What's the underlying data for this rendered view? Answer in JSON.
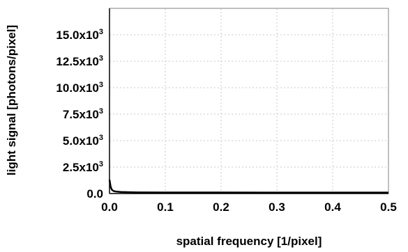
{
  "chart_data": {
    "type": "line",
    "title": "",
    "xlabel": "spatial frequency [1/pixel]",
    "ylabel": "light signal [photons/pixel]",
    "xlim": [
      0,
      0.5
    ],
    "ylim": [
      0,
      17500
    ],
    "grid": true,
    "x_ticks": [
      {
        "value": 0.0,
        "label": "0.0"
      },
      {
        "value": 0.1,
        "label": "0.1"
      },
      {
        "value": 0.2,
        "label": "0.2"
      },
      {
        "value": 0.3,
        "label": "0.3"
      },
      {
        "value": 0.4,
        "label": "0.4"
      },
      {
        "value": 0.5,
        "label": "0.5"
      }
    ],
    "y_ticks": [
      {
        "value": 0,
        "label": "0.0",
        "mantissa": "0.0",
        "exponent": ""
      },
      {
        "value": 2500,
        "label": "2.5x10^3",
        "mantissa": "2.5x10",
        "exponent": "3"
      },
      {
        "value": 5000,
        "label": "5.0x10^3",
        "mantissa": "5.0x10",
        "exponent": "3"
      },
      {
        "value": 7500,
        "label": "7.5x10^3",
        "mantissa": "7.5x10",
        "exponent": "3"
      },
      {
        "value": 10000,
        "label": "10.0x10^3",
        "mantissa": "10.0x10",
        "exponent": "3"
      },
      {
        "value": 12500,
        "label": "12.5x10^3",
        "mantissa": "12.5x10",
        "exponent": "3"
      },
      {
        "value": 15000,
        "label": "15.0x10^3",
        "mantissa": "15.0x10",
        "exponent": "3"
      }
    ],
    "series": [
      {
        "color": "#000000",
        "x": [
          0.0,
          0.002,
          0.004,
          0.006,
          0.008,
          0.01,
          0.015,
          0.02,
          0.03,
          0.05,
          0.1,
          0.2,
          0.3,
          0.4,
          0.5
        ],
        "y": [
          1300,
          650,
          380,
          280,
          230,
          200,
          170,
          150,
          130,
          110,
          100,
          95,
          90,
          90,
          90
        ]
      }
    ]
  }
}
